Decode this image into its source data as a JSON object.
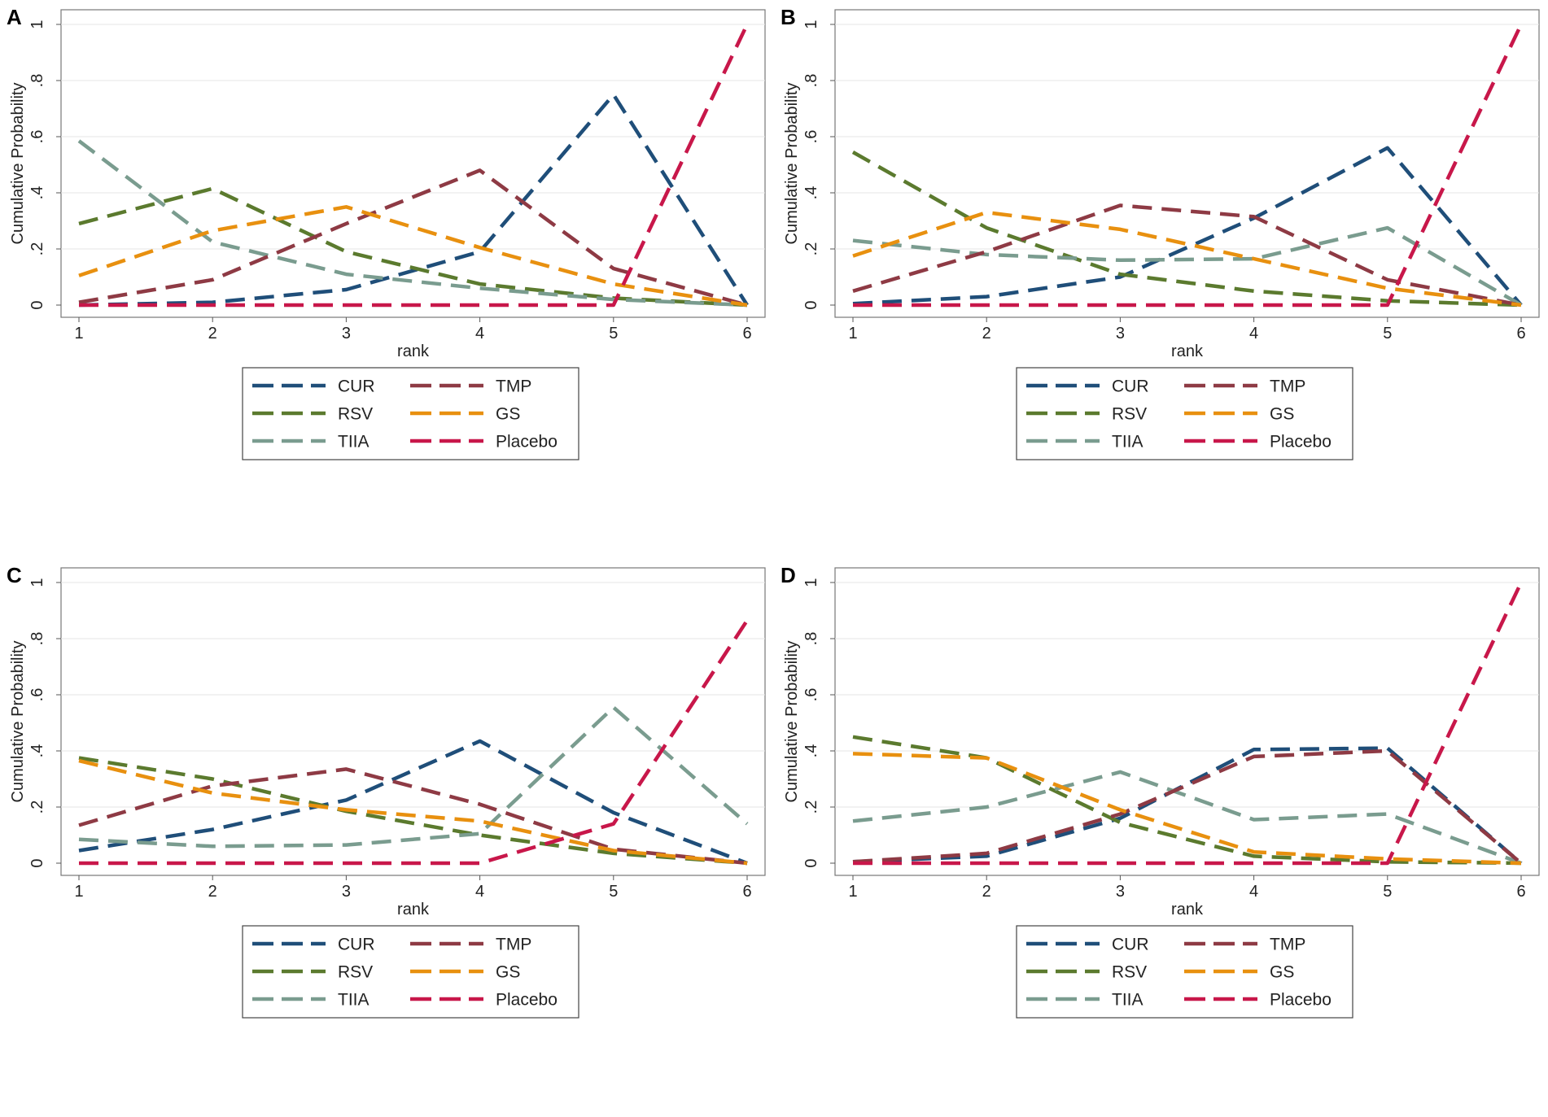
{
  "colors": {
    "CUR": "#1f4e79",
    "RSV": "#5b7a2e",
    "TIIA": "#7a9c8f",
    "TMP": "#8e3a44",
    "GS": "#e8900f",
    "Placebo": "#c8174a"
  },
  "chart_data": [
    {
      "type": "line",
      "panel_label": "A",
      "xlabel": "rank",
      "ylabel": "Cumulative Probability",
      "x": [
        1,
        2,
        3,
        4,
        5,
        6
      ],
      "xticks": [
        "1",
        "2",
        "3",
        "4",
        "5",
        "6"
      ],
      "yticks": [
        "0",
        ".2",
        ".4",
        ".6",
        ".8",
        "1"
      ],
      "ylim": [
        0,
        1
      ],
      "legend": [
        "CUR",
        "TMP",
        "RSV",
        "GS",
        "TIIA",
        "Placebo"
      ],
      "series": [
        {
          "name": "CUR",
          "values": [
            0.0,
            0.01,
            0.055,
            0.19,
            0.75,
            0.0
          ]
        },
        {
          "name": "RSV",
          "values": [
            0.29,
            0.415,
            0.19,
            0.075,
            0.025,
            0.0
          ]
        },
        {
          "name": "TIIA",
          "values": [
            0.585,
            0.225,
            0.11,
            0.06,
            0.02,
            0.0
          ]
        },
        {
          "name": "TMP",
          "values": [
            0.01,
            0.09,
            0.29,
            0.48,
            0.13,
            0.0
          ]
        },
        {
          "name": "GS",
          "values": [
            0.105,
            0.265,
            0.35,
            0.205,
            0.075,
            0.0
          ]
        },
        {
          "name": "Placebo",
          "values": [
            0.0,
            0.0,
            0.0,
            0.0,
            0.0,
            1.0
          ]
        }
      ]
    },
    {
      "type": "line",
      "panel_label": "B",
      "xlabel": "rank",
      "ylabel": "Cumulative Probability",
      "x": [
        1,
        2,
        3,
        4,
        5,
        6
      ],
      "xticks": [
        "1",
        "2",
        "3",
        "4",
        "5",
        "6"
      ],
      "yticks": [
        "0",
        ".2",
        ".4",
        ".6",
        ".8",
        "1"
      ],
      "ylim": [
        0,
        1
      ],
      "legend": [
        "CUR",
        "TMP",
        "RSV",
        "GS",
        "TIIA",
        "Placebo"
      ],
      "series": [
        {
          "name": "CUR",
          "values": [
            0.005,
            0.03,
            0.1,
            0.31,
            0.56,
            0.0
          ]
        },
        {
          "name": "RSV",
          "values": [
            0.545,
            0.275,
            0.11,
            0.05,
            0.015,
            0.0
          ]
        },
        {
          "name": "TIIA",
          "values": [
            0.23,
            0.18,
            0.16,
            0.165,
            0.275,
            0.0
          ]
        },
        {
          "name": "TMP",
          "values": [
            0.05,
            0.19,
            0.355,
            0.315,
            0.09,
            0.0
          ]
        },
        {
          "name": "GS",
          "values": [
            0.175,
            0.33,
            0.27,
            0.165,
            0.06,
            0.0
          ]
        },
        {
          "name": "Placebo",
          "values": [
            0.0,
            0.0,
            0.0,
            0.0,
            0.0,
            1.0
          ]
        }
      ]
    },
    {
      "type": "line",
      "panel_label": "C",
      "xlabel": "rank",
      "ylabel": "Cumulative Probability",
      "x": [
        1,
        2,
        3,
        4,
        5,
        6
      ],
      "xticks": [
        "1",
        "2",
        "3",
        "4",
        "5",
        "6"
      ],
      "yticks": [
        "0",
        ".2",
        ".4",
        ".6",
        ".8",
        "1"
      ],
      "ylim": [
        0,
        1
      ],
      "legend": [
        "CUR",
        "TMP",
        "RSV",
        "GS",
        "TIIA",
        "Placebo"
      ],
      "series": [
        {
          "name": "CUR",
          "values": [
            0.045,
            0.12,
            0.225,
            0.435,
            0.18,
            0.0
          ]
        },
        {
          "name": "RSV",
          "values": [
            0.375,
            0.3,
            0.185,
            0.1,
            0.035,
            0.0
          ]
        },
        {
          "name": "TIIA",
          "values": [
            0.085,
            0.06,
            0.065,
            0.105,
            0.555,
            0.14
          ]
        },
        {
          "name": "TMP",
          "values": [
            0.135,
            0.275,
            0.335,
            0.21,
            0.05,
            0.0
          ]
        },
        {
          "name": "GS",
          "values": [
            0.365,
            0.25,
            0.19,
            0.15,
            0.045,
            0.0
          ]
        },
        {
          "name": "Placebo",
          "values": [
            0.0,
            0.0,
            0.0,
            0.0,
            0.14,
            0.865
          ]
        }
      ]
    },
    {
      "type": "line",
      "panel_label": "D",
      "xlabel": "rank",
      "ylabel": "Cumulative Probability",
      "x": [
        1,
        2,
        3,
        4,
        5,
        6
      ],
      "xticks": [
        "1",
        "2",
        "3",
        "4",
        "5",
        "6"
      ],
      "yticks": [
        "0",
        ".2",
        ".4",
        ".6",
        ".8",
        "1"
      ],
      "ylim": [
        0,
        1
      ],
      "legend": [
        "CUR",
        "TMP",
        "RSV",
        "GS",
        "TIIA",
        "Placebo"
      ],
      "series": [
        {
          "name": "CUR",
          "values": [
            0.005,
            0.025,
            0.16,
            0.405,
            0.41,
            0.0
          ]
        },
        {
          "name": "RSV",
          "values": [
            0.45,
            0.375,
            0.145,
            0.025,
            0.005,
            0.0
          ]
        },
        {
          "name": "TIIA",
          "values": [
            0.15,
            0.2,
            0.325,
            0.155,
            0.175,
            0.0
          ]
        },
        {
          "name": "TMP",
          "values": [
            0.005,
            0.035,
            0.175,
            0.38,
            0.4,
            0.0
          ]
        },
        {
          "name": "GS",
          "values": [
            0.39,
            0.375,
            0.19,
            0.04,
            0.015,
            0.0
          ]
        },
        {
          "name": "Placebo",
          "values": [
            0.0,
            0.0,
            0.0,
            0.0,
            0.0,
            1.0
          ]
        }
      ]
    }
  ]
}
